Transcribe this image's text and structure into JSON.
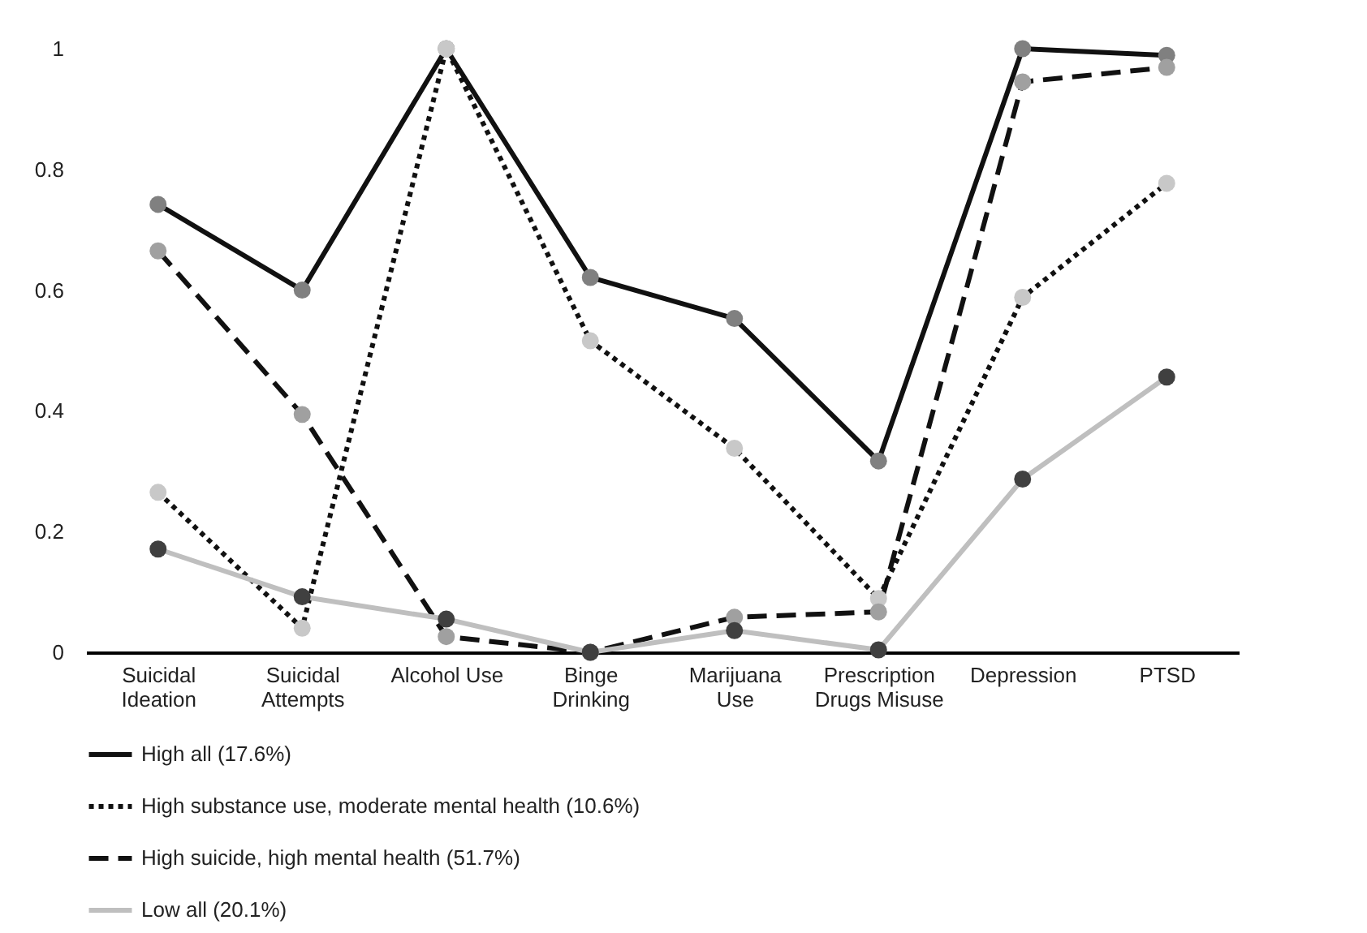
{
  "chart_data": {
    "type": "line",
    "categories": [
      "Suicidal Ideation",
      "Suicidal Attempts",
      "Alcohol Use",
      "Binge Drinking",
      "Marijuana Use",
      "Prescription Drugs Misuse",
      "Depression",
      "PTSD"
    ],
    "series": [
      {
        "name": "High all (17.6%)",
        "color": "#111111",
        "line_style": "solid",
        "colors": [
          "#808080",
          "#808080",
          "#808080",
          "#808080",
          "#808080",
          "#808080",
          "#808080",
          "#808080"
        ],
        "values": [
          0.742,
          0.6,
          1.0,
          0.621,
          0.553,
          0.317,
          1.0,
          0.989
        ]
      },
      {
        "name": "High substance use, moderate mental health (10.6%)",
        "color": "#111111",
        "line_style": "dotted",
        "colors": [
          "#c8c8c8",
          "#c8c8c8",
          "#c8c8c8",
          "#c8c8c8",
          "#c8c8c8",
          "#c8c8c8",
          "#c8c8c8",
          "#c8c8c8"
        ],
        "values": [
          0.265,
          0.04,
          1.0,
          0.516,
          0.338,
          0.089,
          0.588,
          0.777
        ]
      },
      {
        "name": "High suicide, high mental health (51.7%)",
        "color": "#111111",
        "line_style": "dashed",
        "colors": [
          "#a0a0a0",
          "#a0a0a0",
          "#a0a0a0",
          "#a0a0a0",
          "#a0a0a0",
          "#a0a0a0",
          "#a0a0a0",
          "#a0a0a0"
        ],
        "values": [
          0.665,
          0.394,
          0.026,
          0.0,
          0.058,
          0.067,
          0.945,
          0.969
        ]
      },
      {
        "name": "Low all (20.1%)",
        "color": "#bfbfbf",
        "line_style": "solid",
        "colors": [
          "#404040",
          "#404040",
          "#404040",
          "#404040",
          "#404040",
          "#404040",
          "#404040",
          "#404040"
        ],
        "values": [
          0.171,
          0.092,
          0.055,
          0.0,
          0.036,
          0.004,
          0.287,
          0.456
        ]
      }
    ],
    "ylim": [
      0,
      1
    ],
    "yticks": [
      0,
      0.2,
      0.4,
      0.6,
      0.8,
      1
    ],
    "marker": "circle",
    "legend": "bottom",
    "grid": false
  }
}
